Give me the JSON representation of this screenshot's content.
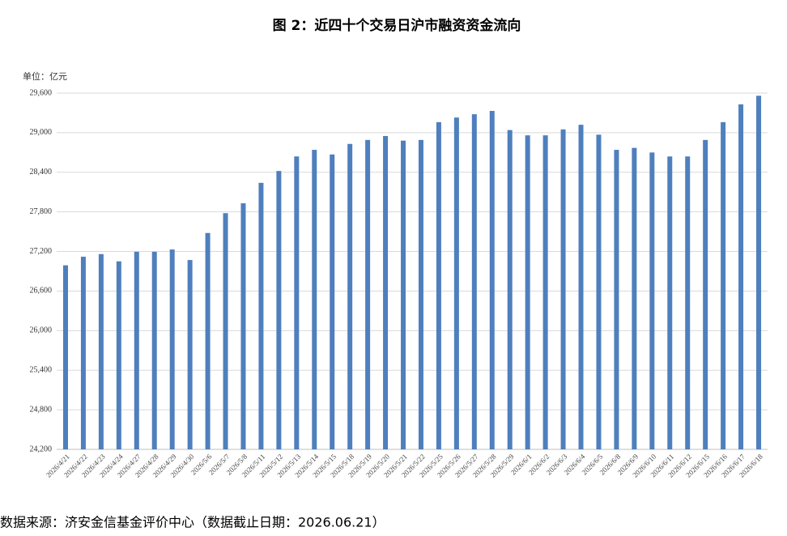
{
  "chart_data": {
    "type": "bar",
    "title": "图 2：近四十个交易日沪市融资资金流向",
    "y_axis_label": "单位：亿元",
    "source": "数据来源：济安金信基金评价中心（数据截止日期：2026.06.21）",
    "categories": [
      "2026/4/21",
      "2026/4/22",
      "2026/4/23",
      "2026/4/24",
      "2026/4/27",
      "2026/4/28",
      "2026/4/29",
      "2026/4/30",
      "2026/5/6",
      "2026/5/7",
      "2026/5/8",
      "2026/5/11",
      "2026/5/12",
      "2026/5/13",
      "2026/5/14",
      "2026/5/15",
      "2026/5/18",
      "2026/5/19",
      "2026/5/20",
      "2026/5/21",
      "2026/5/22",
      "2026/5/25",
      "2026/5/26",
      "2026/5/27",
      "2026/5/28",
      "2026/5/29",
      "2026/6/1",
      "2026/6/2",
      "2026/6/3",
      "2026/6/4",
      "2026/6/5",
      "2026/6/8",
      "2026/6/9",
      "2026/6/10",
      "2026/6/11",
      "2026/6/12",
      "2026/6/15",
      "2026/6/16",
      "2026/6/17",
      "2026/6/18"
    ],
    "values": [
      26990,
      27120,
      27160,
      27050,
      27195,
      27195,
      27230,
      27070,
      27480,
      27780,
      27930,
      28240,
      28420,
      28640,
      28740,
      28670,
      28830,
      28890,
      28950,
      28880,
      28890,
      29160,
      29230,
      29280,
      29330,
      29040,
      28960,
      28960,
      29050,
      29120,
      28970,
      28740,
      28770,
      28700,
      28640,
      28640,
      28890,
      29160,
      29430,
      29560
    ],
    "color": "#4f7fbd",
    "ylim": [
      24200,
      29600
    ],
    "yticks": [
      {
        "value": 24200,
        "label": "24,200"
      },
      {
        "value": 24800,
        "label": "24,800"
      },
      {
        "value": 25400,
        "label": "25,400"
      },
      {
        "value": 26000,
        "label": "26,000"
      },
      {
        "value": 26600,
        "label": "26,600"
      },
      {
        "value": 27200,
        "label": "27,200"
      },
      {
        "value": 27800,
        "label": "27,800"
      },
      {
        "value": 28400,
        "label": "28,400"
      },
      {
        "value": 29000,
        "label": "29,000"
      },
      {
        "value": 29600,
        "label": "29,600"
      }
    ],
    "grid": true
  }
}
